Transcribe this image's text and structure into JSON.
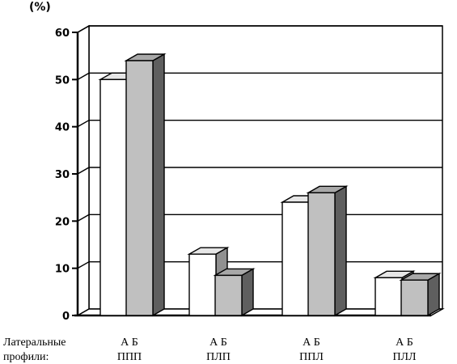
{
  "chart_data": {
    "type": "bar",
    "unit_label": "(%)",
    "ylim": [
      0,
      60
    ],
    "yticks": [
      0,
      10,
      20,
      30,
      40,
      50,
      60
    ],
    "grid": true,
    "row_label_line1": "Латеральные",
    "row_label_line2": "профили:",
    "categories": [
      {
        "series_labels": "А  Б",
        "name": "ППП"
      },
      {
        "series_labels": "А  Б",
        "name": "ПЛП"
      },
      {
        "series_labels": "А  Б",
        "name": "ППЛ"
      },
      {
        "series_labels": "А  Б",
        "name": "ПЛЛ"
      }
    ],
    "series": [
      {
        "name": "А",
        "values": [
          50,
          13,
          24,
          8
        ],
        "color": "#ffffff"
      },
      {
        "name": "Б",
        "values": [
          54,
          8.5,
          26,
          7.5
        ],
        "color": "#c0c0c0"
      }
    ]
  }
}
